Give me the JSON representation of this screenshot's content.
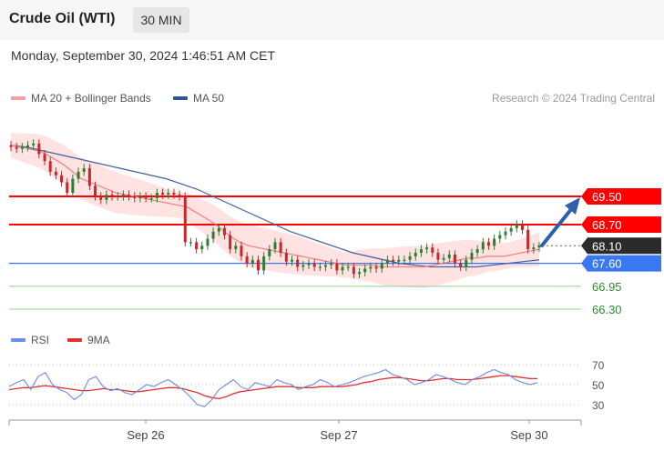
{
  "header": {
    "title": "Crude Oil (WTI)",
    "timeframe": "30 MIN"
  },
  "datetime": "Monday, September 30, 2024 1:46:51 AM CET",
  "legend_top": {
    "item1": "MA 20 + Bollinger Bands",
    "item2": "MA 50",
    "credit": "Research © 2024 Trading Central"
  },
  "legend_bottom": {
    "item1": "RSI",
    "item2": "9MA"
  },
  "colors": {
    "ma20": "#f08080",
    "ma50": "#4060a0",
    "bands": "#ffd6d6",
    "resistance": "#ff0000",
    "support_blue": "#3a78f2",
    "support_green": "#90d090",
    "up": "#2e7d32",
    "down": "#c62828",
    "current": "#2b2b2b",
    "rsi": "#6a8ee8",
    "rsi_ma": "#e03030"
  },
  "chart_data": [
    {
      "type": "line",
      "title": "",
      "x_labels": [
        "Sep 26",
        "Sep 27",
        "Sep 30"
      ],
      "ylim": [
        66.0,
        70.0
      ],
      "price_levels": [
        {
          "value": 69.5,
          "label": "69.50",
          "kind": "resistance"
        },
        {
          "value": 68.7,
          "label": "68.70",
          "kind": "resistance"
        },
        {
          "value": 68.1,
          "label": "68.10",
          "kind": "current"
        },
        {
          "value": 67.6,
          "label": "67.60",
          "kind": "pivot"
        },
        {
          "value": 66.95,
          "label": "66.95",
          "kind": "support"
        },
        {
          "value": 66.3,
          "label": "66.30",
          "kind": "support"
        }
      ],
      "close": [
        70.9,
        70.85,
        70.9,
        70.95,
        71.0,
        70.7,
        70.5,
        70.2,
        70.1,
        69.9,
        69.6,
        70.0,
        70.2,
        70.3,
        69.8,
        69.5,
        69.4,
        69.55,
        69.5,
        69.5,
        69.55,
        69.5,
        69.45,
        69.5,
        69.45,
        69.45,
        69.6,
        69.55,
        69.6,
        69.55,
        69.5,
        68.2,
        68.2,
        68.0,
        68.1,
        68.3,
        68.5,
        68.6,
        68.4,
        68.0,
        68.1,
        67.8,
        67.6,
        67.7,
        67.4,
        67.8,
        68.0,
        68.2,
        67.9,
        67.65,
        67.7,
        67.5,
        67.55,
        67.6,
        67.5,
        67.5,
        67.55,
        67.6,
        67.4,
        67.5,
        67.5,
        67.3,
        67.35,
        67.45,
        67.5,
        67.45,
        67.6,
        67.7,
        67.65,
        67.7,
        67.7,
        67.8,
        67.9,
        68.0,
        68.05,
        67.9,
        67.7,
        67.75,
        67.85,
        67.6,
        67.5,
        67.7,
        67.9,
        68.0,
        68.2,
        68.1,
        68.3,
        68.4,
        68.5,
        68.6,
        68.7,
        68.55,
        68.0,
        68.05,
        68.1
      ],
      "ma20": [
        70.95,
        70.9,
        70.85,
        70.8,
        70.7,
        70.55,
        70.4,
        70.2,
        70.0,
        69.9,
        69.8,
        69.7,
        69.6,
        69.55,
        69.5,
        69.45,
        69.4,
        69.35,
        69.3,
        69.25,
        69.2,
        69.05,
        68.9,
        68.75,
        68.55,
        68.35,
        68.2,
        68.1,
        68.05,
        68.0,
        67.95,
        67.9,
        67.85,
        67.8,
        67.75,
        67.7,
        67.65,
        67.6,
        67.55,
        67.55,
        67.55,
        67.55,
        67.5,
        67.5,
        67.5,
        67.5,
        67.5,
        67.5,
        67.55,
        67.6,
        67.65,
        67.7,
        67.75,
        67.75,
        67.8,
        67.8,
        67.8,
        67.85,
        67.9,
        67.95,
        68.0
      ],
      "ma50": [
        70.95,
        70.9,
        70.8,
        70.7,
        70.6,
        70.5,
        70.4,
        70.3,
        70.2,
        70.1,
        70.0,
        69.85,
        69.7,
        69.5,
        69.3,
        69.1,
        68.9,
        68.7,
        68.5,
        68.35,
        68.2,
        68.05,
        67.9,
        67.8,
        67.7,
        67.6,
        67.55,
        67.5,
        67.5,
        67.5,
        67.5,
        67.55,
        67.6,
        67.65,
        67.7
      ],
      "rsi": [
        48,
        52,
        55,
        45,
        58,
        62,
        50,
        45,
        42,
        35,
        40,
        55,
        58,
        48,
        44,
        46,
        42,
        40,
        45,
        50,
        48,
        52,
        55,
        50,
        45,
        38,
        30,
        28,
        35,
        45,
        50,
        55,
        48,
        45,
        52,
        50,
        48,
        55,
        52,
        50,
        45,
        48,
        50,
        55,
        52,
        48,
        50,
        52,
        55,
        58,
        60,
        62,
        65,
        60,
        58,
        55,
        50,
        52,
        55,
        60,
        58,
        55,
        52,
        50,
        55,
        58,
        62,
        65,
        62,
        60,
        55,
        52,
        50,
        52
      ],
      "rsi_ma": [
        45,
        46,
        47,
        47,
        48,
        49,
        48,
        47,
        46,
        45,
        44,
        44,
        45,
        46,
        45,
        45,
        44,
        43,
        43,
        44,
        45,
        46,
        47,
        47,
        46,
        44,
        42,
        39,
        37,
        36,
        38,
        41,
        43,
        44,
        45,
        46,
        47,
        48,
        48,
        48,
        47,
        47,
        47,
        48,
        48,
        48,
        48,
        49,
        50,
        52,
        53,
        55,
        56,
        57,
        57,
        56,
        55,
        54,
        54,
        55,
        56,
        56,
        55,
        55,
        55,
        56,
        57,
        58,
        59,
        59,
        58,
        57,
        56,
        56
      ],
      "rsi_levels": [
        70,
        50,
        30
      ]
    }
  ]
}
